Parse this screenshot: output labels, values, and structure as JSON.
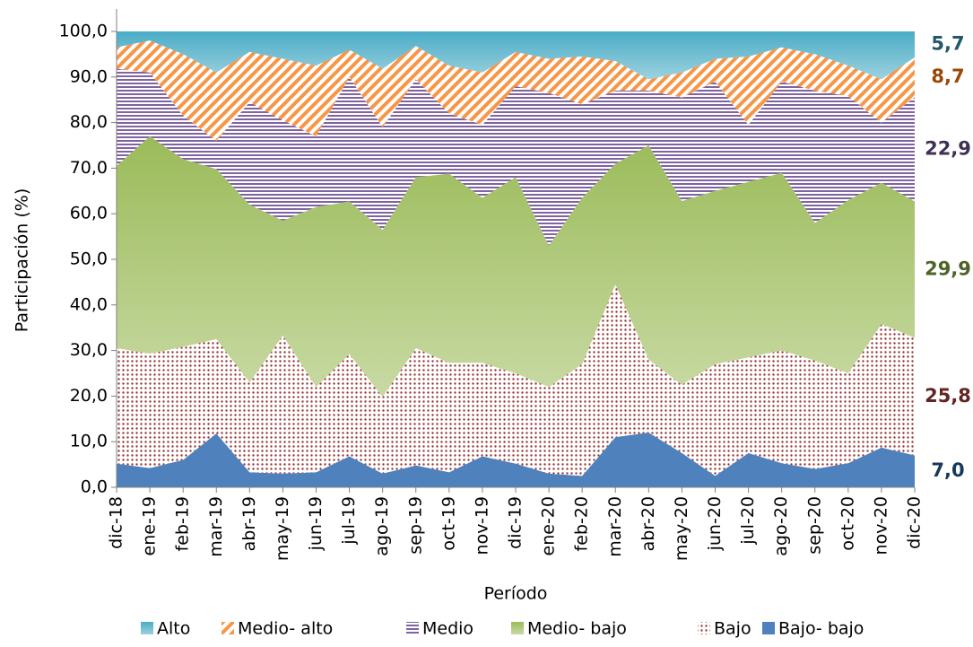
{
  "chart_data": {
    "type": "stacked_area",
    "x_label": "Período",
    "y_label": "Participación (%)",
    "ylim": [
      0,
      100
    ],
    "yticks": [
      {
        "value": 0,
        "label": "0,0"
      },
      {
        "value": 10,
        "label": "10,0"
      },
      {
        "value": 20,
        "label": "20,0"
      },
      {
        "value": 30,
        "label": "30,0"
      },
      {
        "value": 40,
        "label": "40,0"
      },
      {
        "value": 50,
        "label": "50,0"
      },
      {
        "value": 60,
        "label": "60,0"
      },
      {
        "value": 70,
        "label": "70,0"
      },
      {
        "value": 80,
        "label": "80,0"
      },
      {
        "value": 90,
        "label": "90,0"
      },
      {
        "value": 100,
        "label": "100,0"
      }
    ],
    "categories": [
      "dic-18",
      "ene-19",
      "feb-19",
      "mar-19",
      "abr-19",
      "may-19",
      "jun-19",
      "jul-19",
      "ago-19",
      "sep-19",
      "oct-19",
      "nov-19",
      "dic-19",
      "ene-20",
      "feb-20",
      "mar-20",
      "abr-20",
      "may-20",
      "jun-20",
      "jul-20",
      "ago-20",
      "sep-20",
      "oct-20",
      "nov-20",
      "dic-20"
    ],
    "legend": "bottom",
    "series": [
      {
        "name": "Bajo- bajo",
        "color": "#4f81bd",
        "fill_style": "solid",
        "label_color": "#17375e",
        "values": [
          5.2,
          4.2,
          6.0,
          11.8,
          3.3,
          3.0,
          3.3,
          6.8,
          3.0,
          4.8,
          3.3,
          6.8,
          5.2,
          3.0,
          2.5,
          11.0,
          12.0,
          7.5,
          2.5,
          7.5,
          5.3,
          4.0,
          5.3,
          8.7,
          7.0
        ],
        "value_labels": [
          null,
          null,
          null,
          null,
          null,
          null,
          null,
          null,
          null,
          null,
          null,
          null,
          null,
          null,
          null,
          null,
          null,
          null,
          null,
          null,
          null,
          null,
          null,
          null,
          "7,0"
        ]
      },
      {
        "name": "Bajo",
        "color": "#953735",
        "fill_style": "dots",
        "label_color": "#632523",
        "values": [
          25.3,
          25.1,
          24.8,
          20.7,
          19.7,
          30.3,
          18.7,
          22.4,
          16.8,
          25.7,
          24.0,
          20.5,
          19.8,
          19.0,
          24.5,
          33.5,
          16.0,
          15.0,
          24.5,
          21.0,
          24.7,
          23.8,
          19.7,
          27.1,
          25.8
        ],
        "value_labels": [
          null,
          null,
          null,
          null,
          null,
          null,
          null,
          null,
          null,
          null,
          null,
          null,
          null,
          null,
          null,
          null,
          null,
          null,
          null,
          null,
          null,
          null,
          null,
          null,
          "25,8"
        ]
      },
      {
        "name": "Medio- bajo",
        "color": "#9bbb59",
        "fill_style": "gradient",
        "label_color": "#4f6228",
        "values": [
          40.0,
          47.7,
          41.2,
          37.3,
          39.0,
          25.2,
          39.5,
          33.5,
          36.7,
          37.5,
          41.5,
          36.2,
          43.0,
          31.0,
          36.5,
          26.5,
          47.0,
          40.3,
          38.0,
          38.5,
          39.0,
          30.2,
          38.0,
          31.0,
          29.9
        ],
        "value_labels": [
          null,
          null,
          null,
          null,
          null,
          null,
          null,
          null,
          null,
          null,
          null,
          null,
          null,
          null,
          null,
          null,
          null,
          null,
          null,
          null,
          null,
          null,
          null,
          null,
          "29,9"
        ]
      },
      {
        "name": "Medio",
        "color": "#8064a2",
        "fill_style": "horizontal",
        "label_color": "#3f3151",
        "values": [
          21.3,
          14.0,
          9.5,
          6.2,
          22.5,
          22.0,
          15.5,
          27.3,
          22.5,
          21.5,
          13.2,
          16.0,
          20.0,
          33.5,
          20.5,
          16.0,
          12.0,
          22.7,
          24.0,
          12.5,
          20.0,
          29.0,
          22.8,
          13.2,
          22.9
        ],
        "value_labels": [
          null,
          null,
          null,
          null,
          null,
          null,
          null,
          null,
          null,
          null,
          null,
          null,
          null,
          null,
          null,
          null,
          null,
          null,
          null,
          null,
          null,
          null,
          null,
          null,
          "22,9"
        ]
      },
      {
        "name": "Medio- alto",
        "color": "#f79646",
        "fill_style": "diagonal",
        "label_color": "#984807",
        "values": [
          4.7,
          7.0,
          13.5,
          15.0,
          11.0,
          13.5,
          15.5,
          6.0,
          12.8,
          7.3,
          10.5,
          11.5,
          7.5,
          7.5,
          10.5,
          6.5,
          2.5,
          5.5,
          5.0,
          15.0,
          7.5,
          8.0,
          6.7,
          9.5,
          8.7
        ],
        "value_labels": [
          null,
          null,
          null,
          null,
          null,
          null,
          null,
          null,
          null,
          null,
          null,
          null,
          null,
          null,
          null,
          null,
          null,
          null,
          null,
          null,
          null,
          null,
          null,
          null,
          "8,7"
        ]
      },
      {
        "name": "Alto",
        "color": "#4bacc6",
        "fill_style": "gradient",
        "label_color": "#215968",
        "values": [
          3.5,
          2.0,
          5.0,
          9.0,
          4.5,
          6.0,
          7.5,
          4.0,
          8.2,
          3.2,
          7.5,
          9.0,
          4.5,
          6.0,
          5.5,
          6.5,
          10.5,
          9.0,
          6.0,
          5.5,
          3.5,
          5.0,
          7.5,
          10.5,
          5.7
        ],
        "value_labels": [
          null,
          null,
          null,
          null,
          null,
          null,
          null,
          null,
          null,
          null,
          null,
          null,
          null,
          null,
          null,
          null,
          null,
          null,
          null,
          null,
          null,
          null,
          null,
          null,
          "5,7"
        ]
      }
    ]
  }
}
